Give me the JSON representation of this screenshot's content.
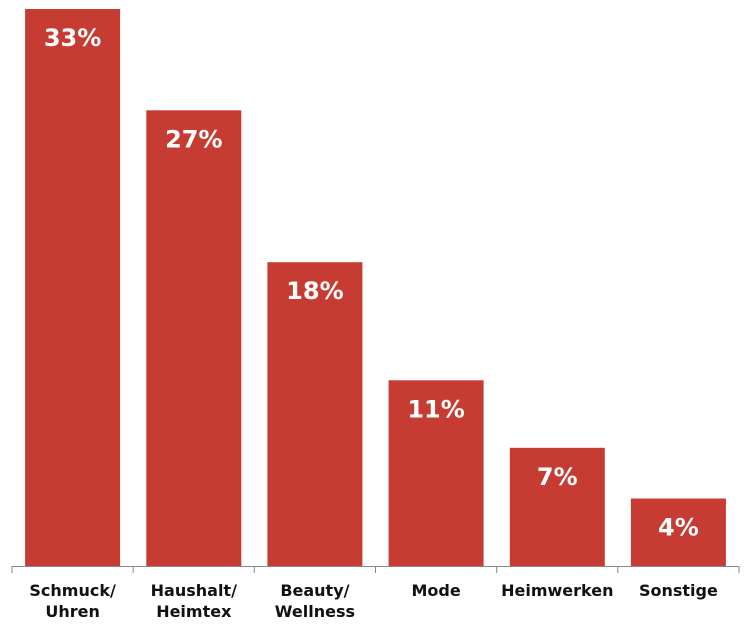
{
  "chart_data": {
    "type": "bar",
    "categories": [
      [
        "Schmuck/",
        "Uhren"
      ],
      [
        "Haushalt/",
        "Heimtex"
      ],
      [
        "Beauty/",
        "Wellness"
      ],
      [
        "Mode"
      ],
      [
        "Heimwerken"
      ],
      [
        "Sonstige"
      ]
    ],
    "values": [
      33,
      27,
      18,
      11,
      7,
      4
    ],
    "data_labels": [
      "33%",
      "27%",
      "18%",
      "11%",
      "7%",
      "4%"
    ],
    "ylim": [
      0,
      33
    ],
    "grid": false,
    "legend": "none",
    "colors": {
      "bar": "#C63B32",
      "axis": "#888888",
      "tick_text": "#111111",
      "bar_text": "#ffffff"
    }
  }
}
